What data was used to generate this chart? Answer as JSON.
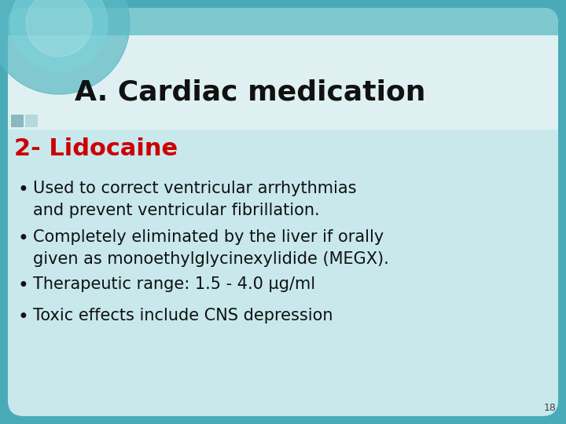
{
  "title": "A. Cardiac medication",
  "subtitle": "2- Lidocaine",
  "subtitle_color": "#cc0000",
  "title_color": "#111111",
  "bullet_color": "#111111",
  "bullets_line1": [
    "Used to correct ventricular arrhythmias",
    "Completely eliminated by the liver if orally",
    "Therapeutic range: 1.5 - 4.0 μg/ml",
    "Toxic effects include CNS depression"
  ],
  "bullets_line2": [
    "and prevent ventricular fibrillation.",
    "given as monoethylglycinexylidide (MEGX).",
    "",
    ""
  ],
  "slide_border_color": "#4aabb8",
  "bg_teal": "#7ec8d0",
  "bg_header_white": "#dff0f2",
  "bg_body": "#c8e8ec",
  "circle_color": "#5ab8c4",
  "circle_inner": "#7dd4dc",
  "sq_color1": "#7ab0b8",
  "sq_color2": "#98c8ce",
  "page_num": "18",
  "title_fontsize": 26,
  "subtitle_fontsize": 22,
  "bullet_fontsize": 15
}
